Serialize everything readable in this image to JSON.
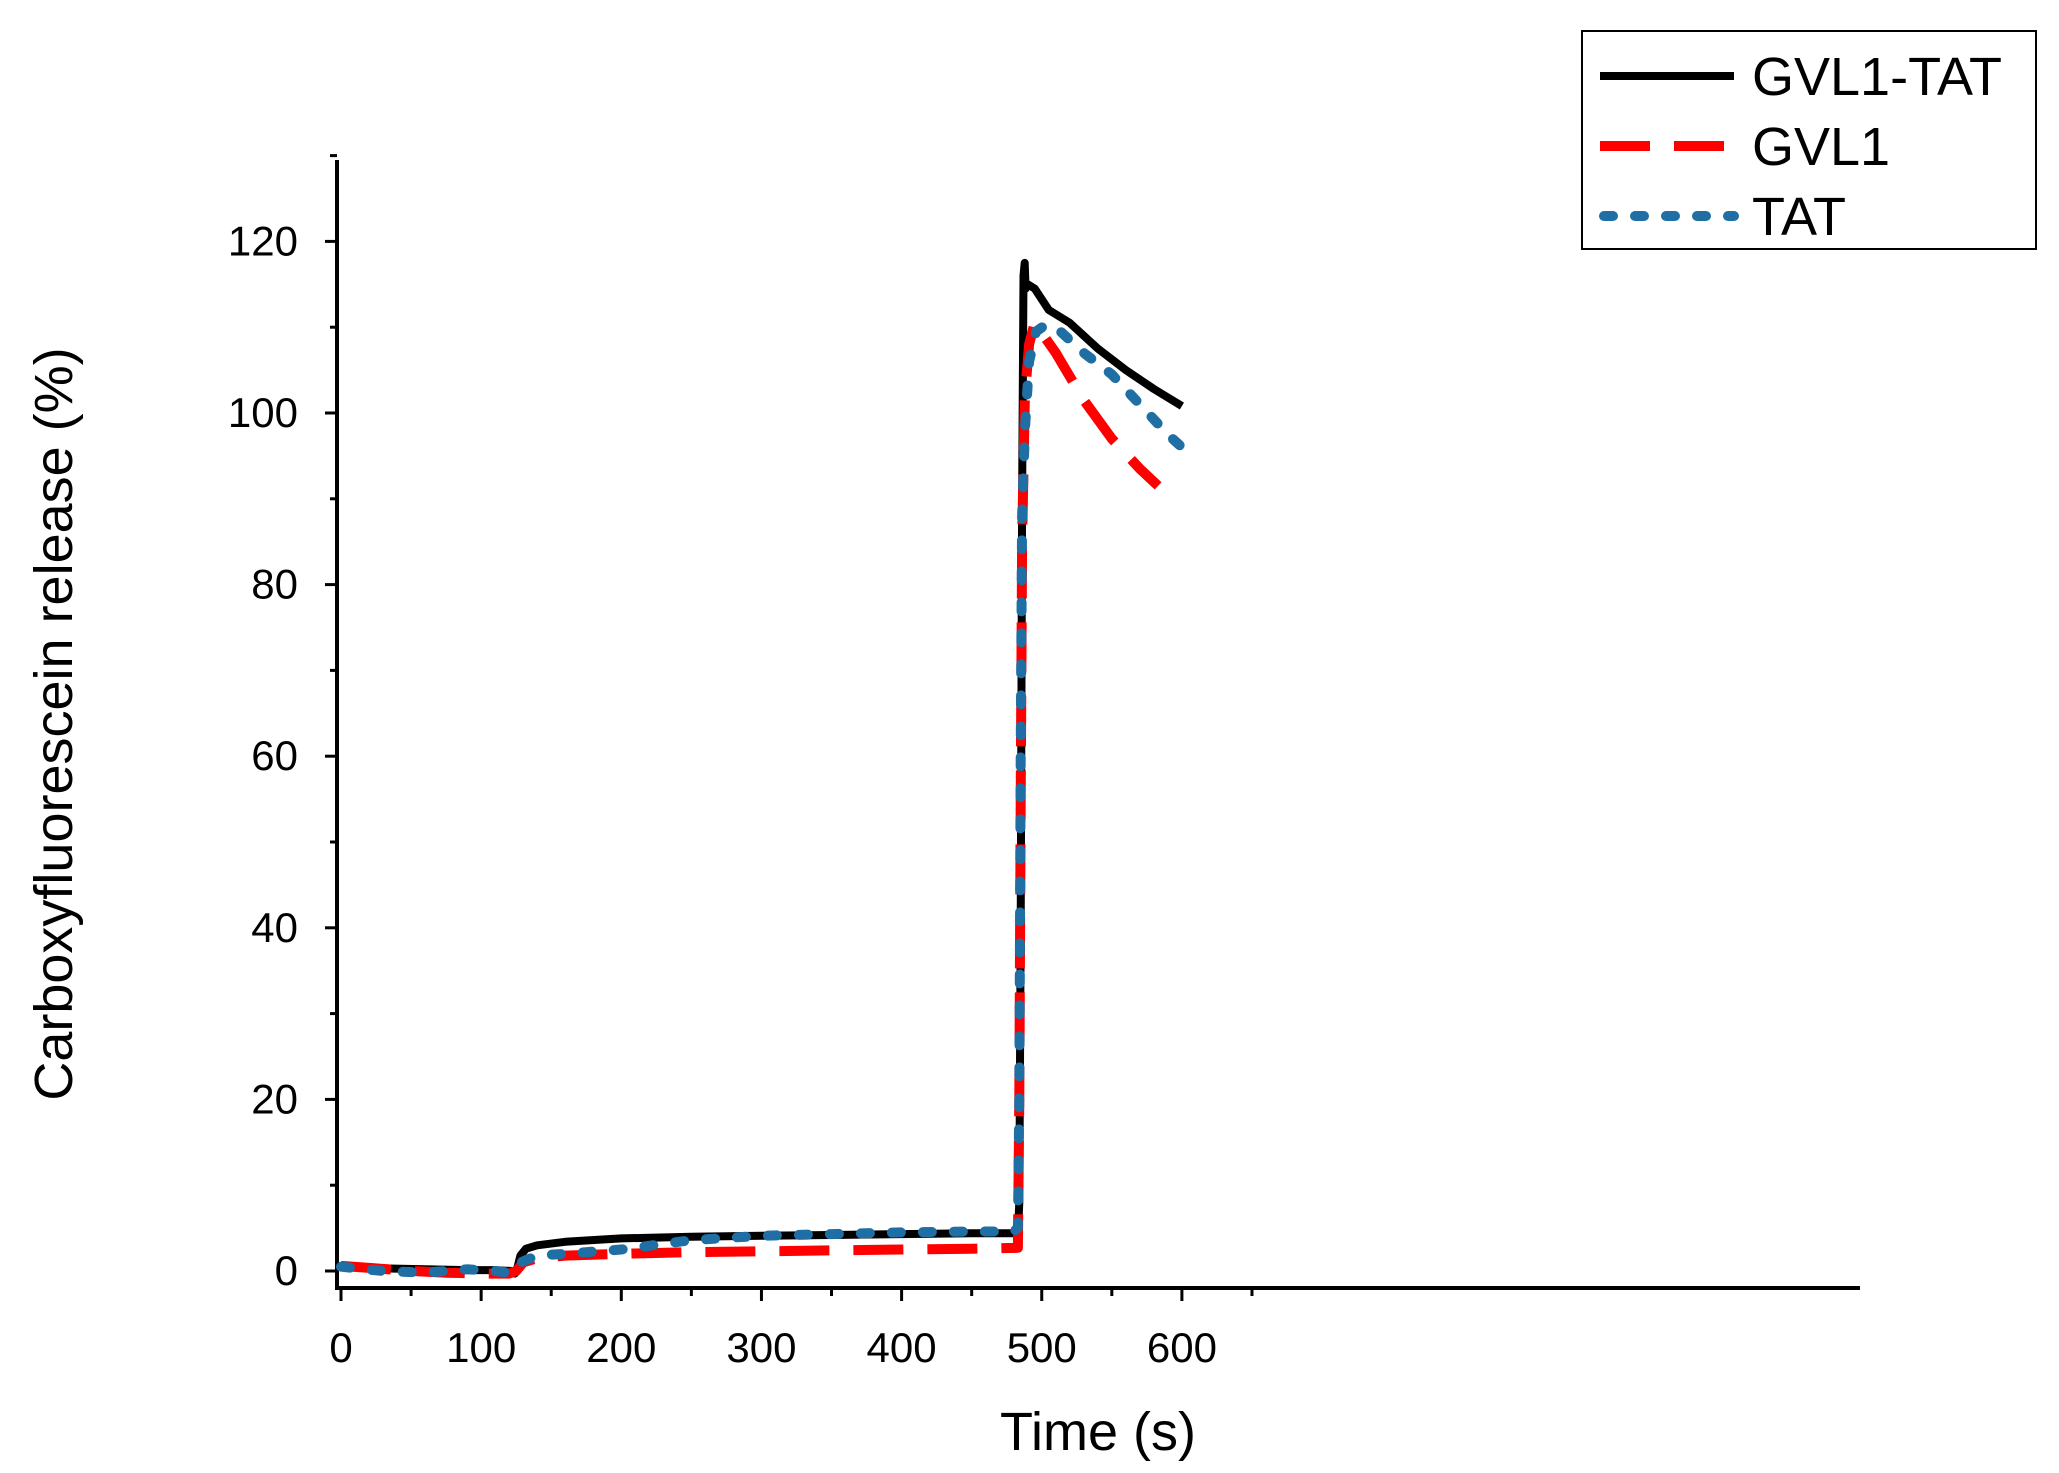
{
  "chart_data": {
    "type": "line",
    "title": "",
    "xlabel": "Time (s)",
    "ylabel": "Carboxyfluorescein release (%)",
    "xlim": [
      -2,
      650
    ],
    "ylim": [
      -2,
      130
    ],
    "xticks": [
      0,
      100,
      200,
      300,
      400,
      500,
      600
    ],
    "yticks": [
      0,
      20,
      40,
      60,
      80,
      100,
      120
    ],
    "xminor": [
      50,
      150,
      250,
      350,
      450,
      550,
      650
    ],
    "yminor": [
      10,
      30,
      50,
      70,
      90,
      110,
      130
    ],
    "grid": false,
    "legend_position": "top-right",
    "series": [
      {
        "name": "GVL1-TAT",
        "color": "#000000",
        "style": "solid",
        "points": [
          [
            0,
            0.5
          ],
          [
            30,
            0.3
          ],
          [
            60,
            0.2
          ],
          [
            90,
            0.1
          ],
          [
            110,
            0.1
          ],
          [
            122,
            0.0
          ],
          [
            124,
            -0.3
          ],
          [
            126,
            0.5
          ],
          [
            128,
            1.8
          ],
          [
            132,
            2.6
          ],
          [
            140,
            3.0
          ],
          [
            160,
            3.4
          ],
          [
            200,
            3.8
          ],
          [
            250,
            4.0
          ],
          [
            300,
            4.1
          ],
          [
            350,
            4.2
          ],
          [
            400,
            4.3
          ],
          [
            450,
            4.4
          ],
          [
            483,
            4.4
          ],
          [
            484,
            8
          ],
          [
            485,
            40
          ],
          [
            486,
            90
          ],
          [
            487,
            116
          ],
          [
            487.8,
            117.5
          ],
          [
            488.5,
            114.5
          ],
          [
            490,
            115
          ],
          [
            495,
            114.5
          ],
          [
            505,
            112
          ],
          [
            520,
            110.5
          ],
          [
            540,
            107.5
          ],
          [
            560,
            105
          ],
          [
            580,
            102.8
          ],
          [
            600,
            100.8
          ]
        ]
      },
      {
        "name": "GVL1",
        "color": "#ff0000",
        "style": "dashed",
        "points": [
          [
            0,
            0.6
          ],
          [
            25,
            0.3
          ],
          [
            50,
            0.0
          ],
          [
            75,
            -0.2
          ],
          [
            100,
            -0.3
          ],
          [
            120,
            -0.3
          ],
          [
            125,
            0.0
          ],
          [
            130,
            1.0
          ],
          [
            140,
            1.5
          ],
          [
            160,
            1.8
          ],
          [
            200,
            2.0
          ],
          [
            250,
            2.2
          ],
          [
            300,
            2.3
          ],
          [
            350,
            2.4
          ],
          [
            400,
            2.5
          ],
          [
            450,
            2.6
          ],
          [
            483,
            2.7
          ],
          [
            484,
            20
          ],
          [
            485,
            55
          ],
          [
            486,
            85
          ],
          [
            488,
            102
          ],
          [
            491,
            108
          ],
          [
            495,
            110.5
          ],
          [
            510,
            107
          ],
          [
            530,
            101.5
          ],
          [
            550,
            97
          ],
          [
            570,
            93.5
          ],
          [
            583,
            91.5
          ]
        ]
      },
      {
        "name": "TAT",
        "color": "#1f6fa5",
        "style": "dotted",
        "points": [
          [
            0,
            0.5
          ],
          [
            30,
            0.0
          ],
          [
            60,
            -0.2
          ],
          [
            90,
            0.2
          ],
          [
            110,
            0.0
          ],
          [
            120,
            -0.2
          ],
          [
            124,
            0.2
          ],
          [
            128,
            1.0
          ],
          [
            140,
            1.8
          ],
          [
            160,
            2.0
          ],
          [
            200,
            2.5
          ],
          [
            250,
            3.6
          ],
          [
            300,
            4.1
          ],
          [
            350,
            4.3
          ],
          [
            400,
            4.5
          ],
          [
            450,
            4.6
          ],
          [
            480,
            4.6
          ],
          [
            483,
            5.0
          ],
          [
            484,
            20
          ],
          [
            485,
            60
          ],
          [
            486,
            88
          ],
          [
            488,
            98
          ],
          [
            491,
            106
          ],
          [
            496,
            109.5
          ],
          [
            502,
            110.2
          ],
          [
            510,
            110
          ],
          [
            530,
            107
          ],
          [
            550,
            104.5
          ],
          [
            570,
            101
          ],
          [
            590,
            97.5
          ],
          [
            600,
            96
          ]
        ]
      }
    ]
  }
}
